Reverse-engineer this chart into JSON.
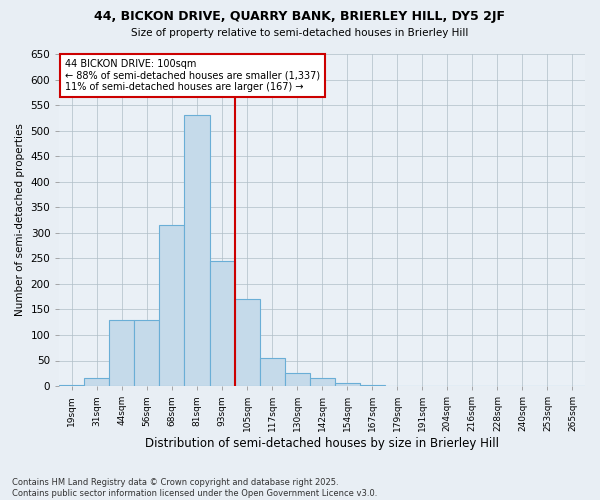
{
  "title1": "44, BICKON DRIVE, QUARRY BANK, BRIERLEY HILL, DY5 2JF",
  "title2": "Size of property relative to semi-detached houses in Brierley Hill",
  "xlabel": "Distribution of semi-detached houses by size in Brierley Hill",
  "ylabel": "Number of semi-detached properties",
  "bins": [
    "19sqm",
    "31sqm",
    "44sqm",
    "56sqm",
    "68sqm",
    "81sqm",
    "93sqm",
    "105sqm",
    "117sqm",
    "130sqm",
    "142sqm",
    "154sqm",
    "167sqm",
    "179sqm",
    "191sqm",
    "204sqm",
    "216sqm",
    "228sqm",
    "240sqm",
    "253sqm",
    "265sqm"
  ],
  "values": [
    2,
    15,
    130,
    130,
    315,
    530,
    245,
    170,
    55,
    25,
    15,
    5,
    2,
    1,
    0,
    0,
    0,
    0,
    0,
    0,
    0
  ],
  "bar_color": "#c5daea",
  "bar_edge_color": "#6aaed6",
  "vline_x_index": 7,
  "vline_color": "#cc0000",
  "annotation_line1": "44 BICKON DRIVE: 100sqm",
  "annotation_line2": "← 88% of semi-detached houses are smaller (1,337)",
  "annotation_line3": "11% of semi-detached houses are larger (167) →",
  "annotation_box_color": "#cc0000",
  "ylim": [
    0,
    650
  ],
  "yticks": [
    0,
    50,
    100,
    150,
    200,
    250,
    300,
    350,
    400,
    450,
    500,
    550,
    600,
    650
  ],
  "footer1": "Contains HM Land Registry data © Crown copyright and database right 2025.",
  "footer2": "Contains public sector information licensed under the Open Government Licence v3.0.",
  "bg_color": "#e8eef4",
  "plot_bg_color": "#eaf0f6"
}
